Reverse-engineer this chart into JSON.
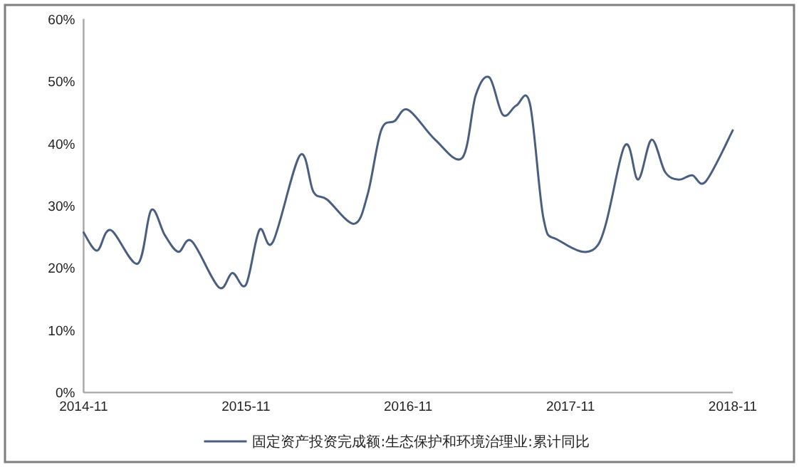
{
  "chart_data": {
    "type": "line",
    "x": [
      "2014-11",
      "2014-12",
      "2015-01",
      "2015-03",
      "2015-04",
      "2015-05",
      "2015-06",
      "2015-07",
      "2015-09",
      "2015-10",
      "2015-11",
      "2015-12",
      "2016-01",
      "2016-03",
      "2016-04",
      "2016-05",
      "2016-07",
      "2016-08",
      "2016-09",
      "2016-10",
      "2016-11",
      "2017-01",
      "2017-03",
      "2017-04",
      "2017-05",
      "2017-06",
      "2017-07",
      "2017-08",
      "2017-09",
      "2017-10",
      "2018-01",
      "2018-03",
      "2018-04",
      "2018-05",
      "2018-06",
      "2018-07",
      "2018-08",
      "2018-09",
      "2018-11"
    ],
    "series": [
      {
        "name": "固定资产投资完成额:生态保护和环境治理业:累计同比",
        "color": "#4a5f80",
        "values": [
          25.7,
          22.8,
          26.1,
          20.7,
          29.3,
          25.3,
          22.6,
          24.3,
          16.9,
          19.2,
          17.3,
          26.1,
          24.2,
          38.1,
          32.2,
          31.0,
          27.1,
          31.8,
          42.1,
          43.6,
          45.4,
          40.6,
          37.7,
          47.8,
          50.6,
          44.6,
          46.1,
          46.4,
          28.0,
          24.6,
          23.6,
          39.6,
          34.2,
          40.6,
          35.4,
          34.2,
          34.9,
          33.9,
          42.1
        ]
      }
    ],
    "xlim": [
      "2014-11",
      "2018-11"
    ],
    "xticks": [
      "2014-11",
      "2015-11",
      "2016-11",
      "2017-11",
      "2018-11"
    ],
    "ylim": [
      0,
      60
    ],
    "yticks": [
      {
        "value": 0,
        "label": "0%"
      },
      {
        "value": 10,
        "label": "10%"
      },
      {
        "value": 20,
        "label": "20%"
      },
      {
        "value": 30,
        "label": "30%"
      },
      {
        "value": 40,
        "label": "40%"
      },
      {
        "value": 50,
        "label": "50%"
      },
      {
        "value": 60,
        "label": "60%"
      }
    ],
    "grid": false,
    "legend": "bottom"
  }
}
